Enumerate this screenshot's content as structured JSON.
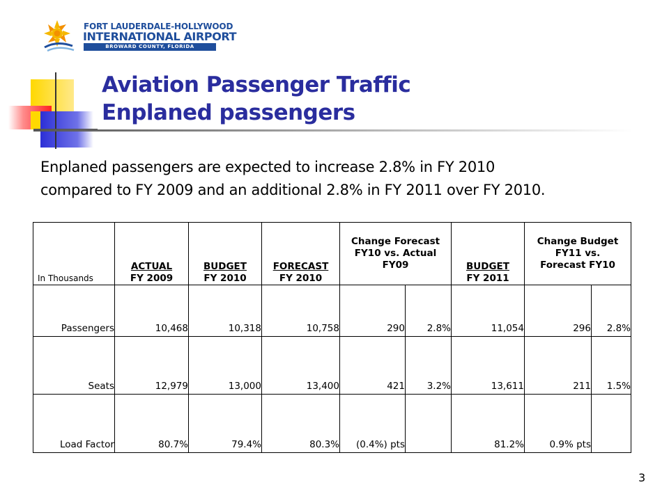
{
  "logo": {
    "line1": "FORT LAUDERDALE-HOLLYWOOD",
    "line2": "INTERNATIONAL AIRPORT",
    "line3": "BROWARD COUNTY, FLORIDA",
    "sun_icon": "sun-icon",
    "colors": {
      "blue": "#1f4e9c",
      "yellow": "#f5b800",
      "orange": "#f39000"
    }
  },
  "title": {
    "line1": "Aviation Passenger Traffic",
    "line2": "Enplaned passengers",
    "color": "#2a2d9e"
  },
  "summary": {
    "line1": "Enplaned passengers are expected to increase 2.8% in FY 2010",
    "line2": "compared to FY 2009 and an additional 2.8% in FY 2011 over FY 2010."
  },
  "table": {
    "unit_label": "In Thousands",
    "headers": {
      "actual_fy2009": {
        "line1": "ACTUAL",
        "line2": "FY 2009"
      },
      "budget_fy2010": {
        "line1": "BUDGET",
        "line2": "FY 2010"
      },
      "forecast_fy2010": {
        "line1": "FORECAST",
        "line2": "FY 2010"
      },
      "change_forecast": {
        "line1": "Change Forecast",
        "line2": "FY10 vs. Actual",
        "line3": "FY09"
      },
      "budget_fy2011": {
        "line1": "BUDGET",
        "line2": "FY 2011"
      },
      "change_budget": {
        "line1": "Change Budget",
        "line2": "FY11 vs.",
        "line3": "Forecast FY10"
      }
    },
    "rows": [
      {
        "label": "Passengers",
        "actual": "10,468",
        "budget10": "10,318",
        "forecast": "10,758",
        "chg1": "290",
        "chg1_pct": "2.8%",
        "budget11": "11,054",
        "chg2": "296",
        "chg2_pct": "2.8%"
      },
      {
        "label": "Seats",
        "actual": "12,979",
        "budget10": "13,000",
        "forecast": "13,400",
        "chg1": "421",
        "chg1_pct": "3.2%",
        "budget11": "13,611",
        "chg2": "211",
        "chg2_pct": "1.5%"
      },
      {
        "label": "Load Factor",
        "actual": "80.7%",
        "budget10": "79.4%",
        "forecast": "80.3%",
        "chg1": "(0.4%) pts",
        "chg1_pct": "",
        "budget11": "81.2%",
        "chg2": "0.9% pts",
        "chg2_pct": ""
      }
    ]
  },
  "page_number": "3"
}
